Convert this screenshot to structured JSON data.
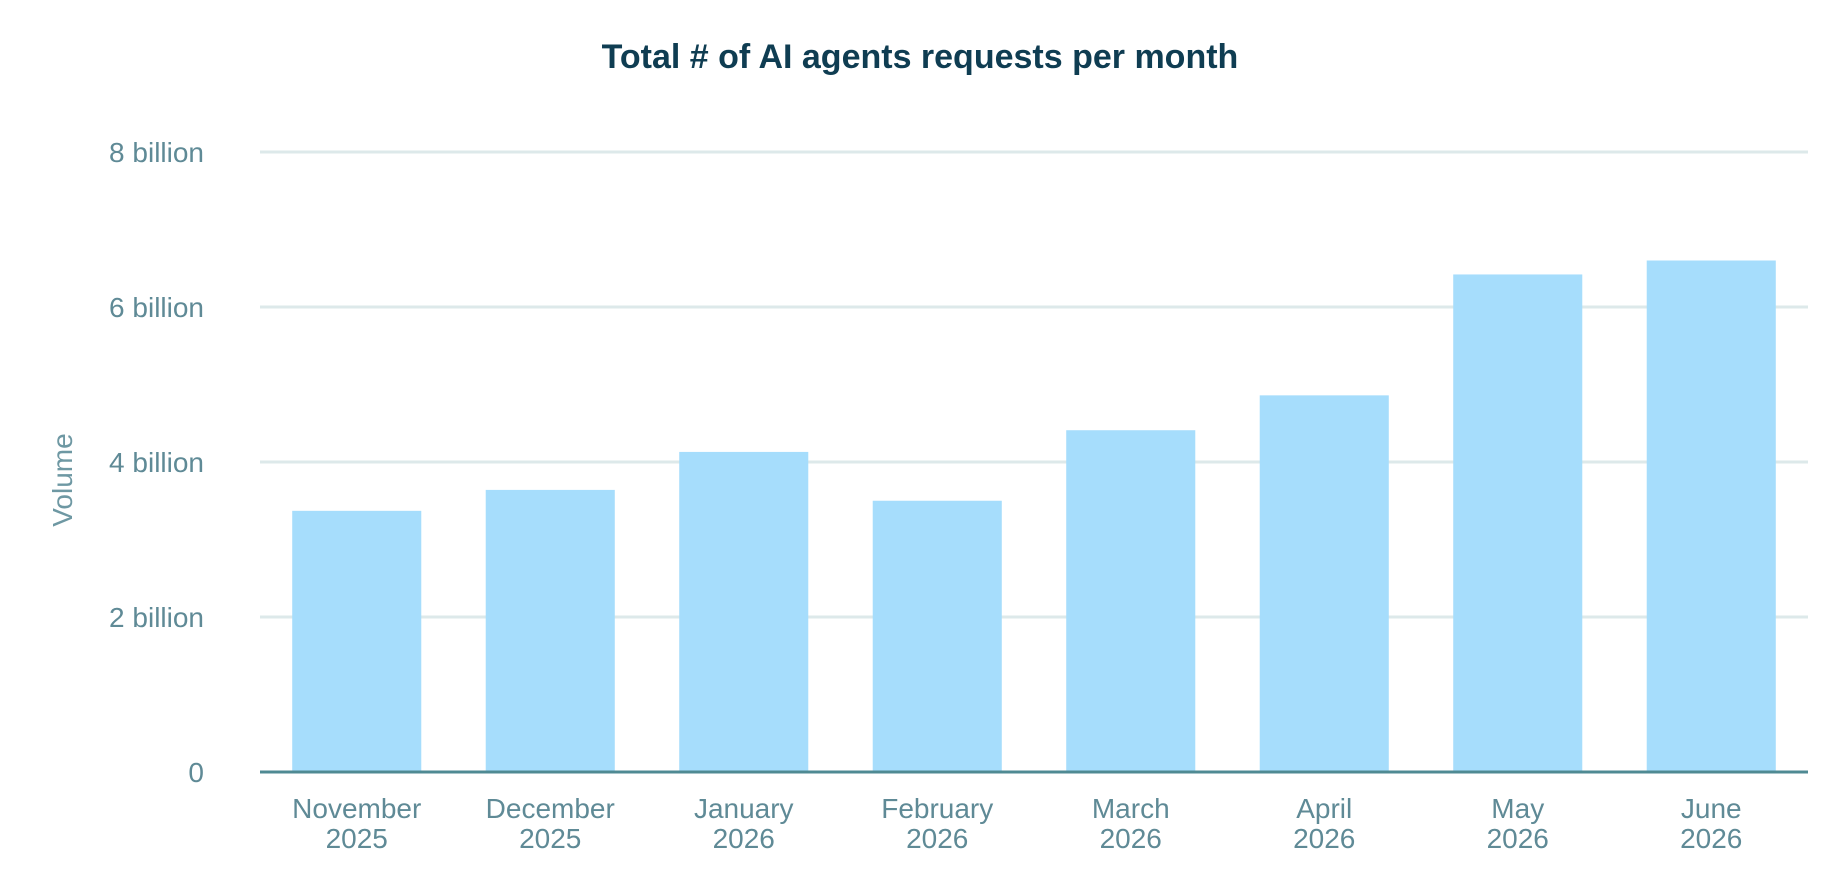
{
  "chart_data": {
    "type": "bar",
    "title": "Total # of AI agents requests per month",
    "xlabel": "",
    "ylabel": "Volume",
    "categories": [
      [
        "November",
        "2025"
      ],
      [
        "December",
        "2025"
      ],
      [
        "January",
        "2026"
      ],
      [
        "February",
        "2026"
      ],
      [
        "March",
        "2026"
      ],
      [
        "April",
        "2026"
      ],
      [
        "May",
        "2026"
      ],
      [
        "June",
        "2026"
      ]
    ],
    "values": [
      3.37,
      3.64,
      4.13,
      3.5,
      4.41,
      4.86,
      6.42,
      6.6
    ],
    "value_unit": "billion",
    "ylim": [
      0,
      8
    ],
    "yticks": [
      {
        "value": 0,
        "label": "0"
      },
      {
        "value": 2,
        "label": "2 billion"
      },
      {
        "value": 4,
        "label": "4 billion"
      },
      {
        "value": 6,
        "label": "6 billion"
      },
      {
        "value": 8,
        "label": "8 billion"
      }
    ],
    "grid": true,
    "legend": "none",
    "colors": {
      "bar": "#a6ddfc",
      "grid": "#dde9ea",
      "axis": "#4f8a93",
      "title": "#0f3d52",
      "label": "#5f8a96"
    }
  }
}
